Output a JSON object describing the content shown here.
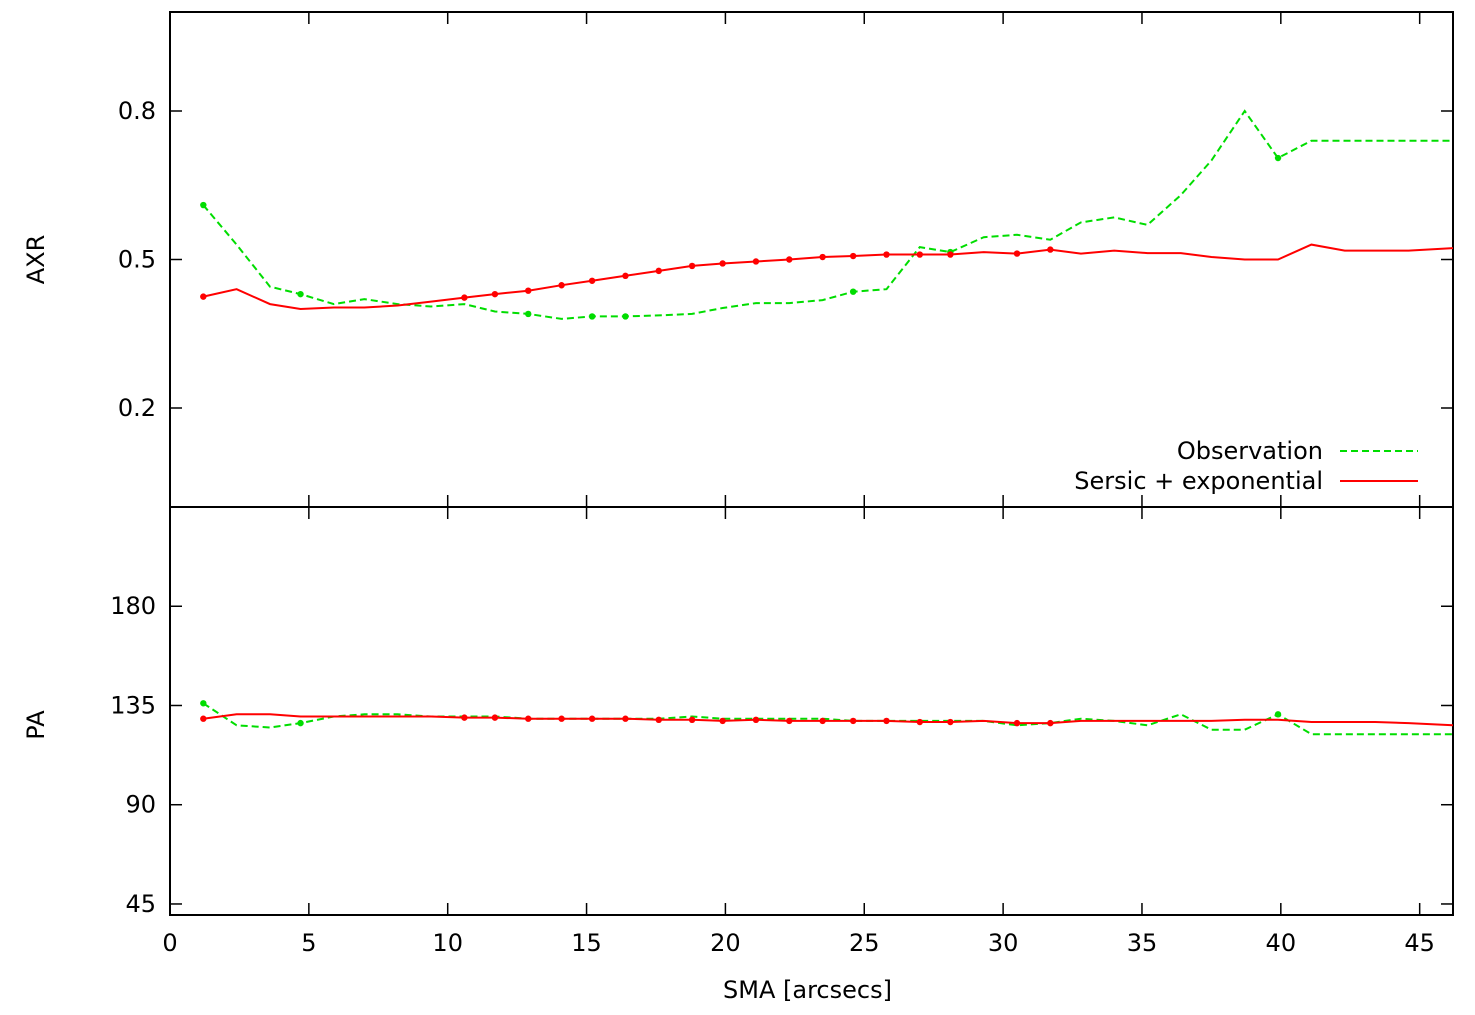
{
  "chart_data": [
    {
      "type": "line",
      "ylabel": "AXR",
      "xlabel": "",
      "xlim": [
        0,
        46.2
      ],
      "ylim": [
        0.0,
        1.0
      ],
      "x_ticks": [
        0,
        5,
        10,
        15,
        20,
        25,
        30,
        35,
        40,
        45
      ],
      "y_ticks": [
        0.2,
        0.5,
        0.8
      ],
      "y_tick_labels": [
        "0.2",
        "0.5",
        "0.8"
      ],
      "legend_position": "bottom-right",
      "grid": false,
      "series": [
        {
          "name": "Observation",
          "color": "#00dd00",
          "style": "dashed",
          "x": [
            1.2,
            2.4,
            3.6,
            4.7,
            5.9,
            7.0,
            8.2,
            9.4,
            10.6,
            11.7,
            12.9,
            14.1,
            15.2,
            16.4,
            17.6,
            18.8,
            19.9,
            21.1,
            22.3,
            23.5,
            24.6,
            25.8,
            27.0,
            28.1,
            29.3,
            30.5,
            31.7,
            32.8,
            34.0,
            35.2,
            36.4,
            37.5,
            38.7,
            39.9,
            41.1,
            42.3,
            43.4,
            44.6,
            46.2
          ],
          "y": [
            0.61,
            0.53,
            0.445,
            0.43,
            0.41,
            0.42,
            0.41,
            0.405,
            0.41,
            0.395,
            0.39,
            0.38,
            0.385,
            0.385,
            0.387,
            0.39,
            0.402,
            0.412,
            0.412,
            0.418,
            0.435,
            0.44,
            0.525,
            0.515,
            0.545,
            0.55,
            0.54,
            0.575,
            0.585,
            0.57,
            0.63,
            0.7,
            0.8,
            0.705,
            0.74,
            0.74,
            0.74,
            0.74,
            0.74
          ],
          "markers_at_x": [
            1.2,
            4.7,
            12.9,
            15.2,
            16.4,
            24.6,
            28.1,
            39.9
          ]
        },
        {
          "name": "Sersic + exponential",
          "color": "#ff0000",
          "style": "solid",
          "x": [
            1.2,
            2.4,
            3.6,
            4.7,
            5.9,
            7.0,
            8.2,
            9.4,
            10.6,
            11.7,
            12.9,
            14.1,
            15.2,
            16.4,
            17.6,
            18.8,
            19.9,
            21.1,
            22.3,
            23.5,
            24.6,
            25.8,
            27.0,
            28.1,
            29.3,
            30.5,
            31.7,
            32.8,
            34.0,
            35.2,
            36.4,
            37.5,
            38.7,
            39.9,
            41.1,
            42.3,
            43.4,
            44.6,
            46.2
          ],
          "y": [
            0.425,
            0.44,
            0.41,
            0.4,
            0.403,
            0.403,
            0.407,
            0.415,
            0.423,
            0.43,
            0.437,
            0.448,
            0.457,
            0.467,
            0.477,
            0.487,
            0.492,
            0.496,
            0.5,
            0.505,
            0.507,
            0.51,
            0.51,
            0.51,
            0.515,
            0.512,
            0.52,
            0.512,
            0.518,
            0.513,
            0.513,
            0.505,
            0.5,
            0.5,
            0.53,
            0.518,
            0.518,
            0.518,
            0.523
          ],
          "markers_at_x": [
            1.2,
            10.6,
            11.7,
            12.9,
            14.1,
            15.2,
            16.4,
            17.6,
            18.8,
            19.9,
            21.1,
            22.3,
            23.5,
            24.6,
            25.8,
            27.0,
            28.1,
            30.5,
            31.7
          ]
        }
      ]
    },
    {
      "type": "line",
      "ylabel": "PA",
      "xlabel": "SMA [arcsecs]",
      "xlim": [
        0,
        46.2
      ],
      "ylim": [
        40,
        225
      ],
      "x_ticks": [
        0,
        5,
        10,
        15,
        20,
        25,
        30,
        35,
        40,
        45
      ],
      "y_ticks": [
        45,
        90,
        135,
        180
      ],
      "y_tick_labels": [
        "45",
        "90",
        "135",
        "180"
      ],
      "grid": false,
      "series": [
        {
          "name": "Observation",
          "color": "#00dd00",
          "style": "dashed",
          "x": [
            1.2,
            2.4,
            3.6,
            4.7,
            5.9,
            7.0,
            8.2,
            9.4,
            10.6,
            11.7,
            12.9,
            14.1,
            15.2,
            16.4,
            17.6,
            18.8,
            19.9,
            21.1,
            22.3,
            23.5,
            24.6,
            25.8,
            27.0,
            28.1,
            29.3,
            30.5,
            31.7,
            32.8,
            34.0,
            35.2,
            36.4,
            37.5,
            38.7,
            39.9,
            41.1,
            42.3,
            43.4,
            44.6,
            46.2
          ],
          "y": [
            136,
            126,
            125,
            127,
            130,
            131,
            131,
            130,
            130,
            130,
            129,
            129,
            129,
            129,
            129,
            130,
            129,
            129,
            129,
            129,
            128,
            128,
            128,
            128,
            128,
            126,
            127,
            129,
            128,
            126,
            131,
            124,
            124,
            131,
            122,
            122,
            122,
            122,
            122
          ],
          "markers_at_x": [
            1.2,
            4.7,
            39.9
          ]
        },
        {
          "name": "Sersic + exponential",
          "color": "#ff0000",
          "style": "solid",
          "x": [
            1.2,
            2.4,
            3.6,
            4.7,
            5.9,
            7.0,
            8.2,
            9.4,
            10.6,
            11.7,
            12.9,
            14.1,
            15.2,
            16.4,
            17.6,
            18.8,
            19.9,
            21.1,
            22.3,
            23.5,
            24.6,
            25.8,
            27.0,
            28.1,
            29.3,
            30.5,
            31.7,
            32.8,
            34.0,
            35.2,
            36.4,
            37.5,
            38.7,
            39.9,
            41.1,
            42.3,
            43.4,
            44.6,
            46.2
          ],
          "y": [
            129,
            131,
            131,
            130,
            130,
            130,
            130,
            130,
            129.5,
            129.5,
            129,
            129,
            129,
            129,
            128.5,
            128.5,
            128,
            128.5,
            128,
            128,
            128,
            128,
            127.5,
            127.5,
            128,
            127,
            127,
            128,
            128,
            128,
            128,
            128,
            128.5,
            128.5,
            127.5,
            127.5,
            127.5,
            127,
            126
          ],
          "markers_at_x": [
            1.2,
            10.6,
            11.7,
            12.9,
            14.1,
            15.2,
            16.4,
            17.6,
            18.8,
            19.9,
            21.1,
            22.3,
            23.5,
            24.6,
            25.8,
            27.0,
            28.1,
            30.5,
            31.7
          ]
        }
      ]
    }
  ]
}
